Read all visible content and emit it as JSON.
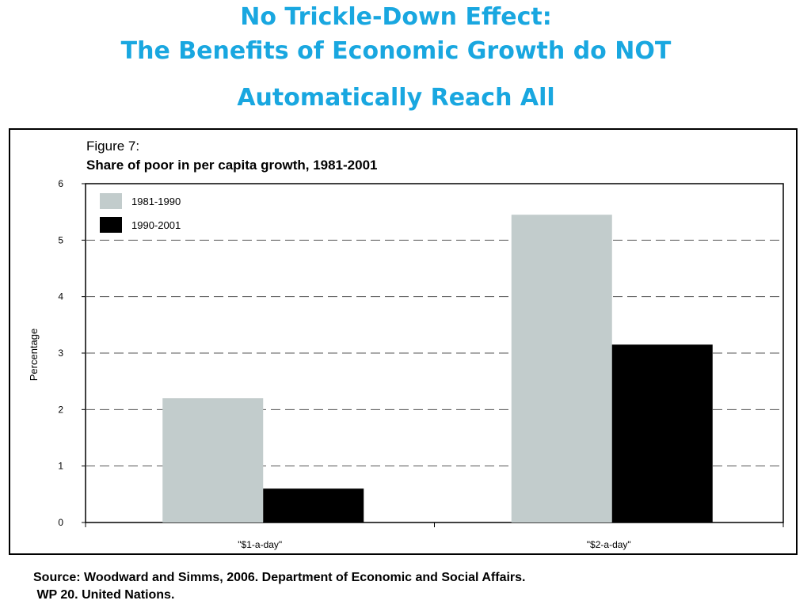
{
  "slide": {
    "title_line1": "No Trickle-Down Effect:",
    "title_line2": "The Benefits of Economic Growth do NOT",
    "title_line3": "Automatically Reach All"
  },
  "source": {
    "line1": "Source: Woodward and Simms, 2006. Department of Economic and Social Affairs.",
    "line2": " WP 20. United Nations."
  },
  "chart_data": {
    "type": "bar",
    "figure_label": "Figure 7:",
    "title": "Share of poor in per capita growth, 1981-2001",
    "ylabel": "Percentage",
    "xlabel": "",
    "categories": [
      "\"$1-a-day\"",
      "\"$2-a-day\""
    ],
    "series": [
      {
        "name": "1981-1990",
        "values": [
          2.2,
          5.45
        ],
        "color": "#c2cccc"
      },
      {
        "name": "1990-2001",
        "values": [
          0.6,
          3.15
        ],
        "color": "#000000"
      }
    ],
    "ylim": [
      0,
      6
    ],
    "yticks": [
      0,
      1,
      2,
      3,
      4,
      5,
      6
    ],
    "grid": "dashed horizontal",
    "legend_position": "top-left"
  }
}
